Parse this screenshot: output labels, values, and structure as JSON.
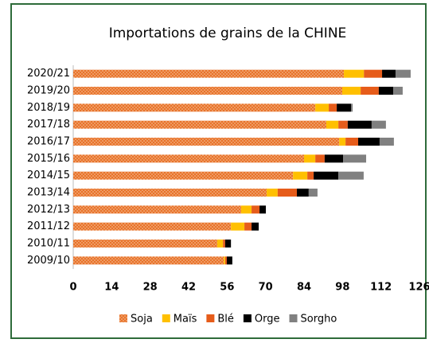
{
  "chart_data": {
    "type": "stacked_barh",
    "title": "Importations de grains de la CHINE",
    "categories": [
      "2020/21",
      "2019/20",
      "2018/19",
      "2017/18",
      "2016/17",
      "2015/16",
      "2014/15",
      "2013/14",
      "2012/13",
      "2011/12",
      "2010/11",
      "2009/10"
    ],
    "series": [
      {
        "name": "Soja",
        "color": "#e8732a",
        "values": [
          98.5,
          97.9,
          88.1,
          92.1,
          96.8,
          84.0,
          80.0,
          70.4,
          61.1,
          57.4,
          52.4,
          54.8
        ]
      },
      {
        "name": "Maïs",
        "color": "#ffc000",
        "values": [
          7.3,
          6.7,
          4.9,
          4.4,
          2.3,
          4.1,
          5.2,
          4.0,
          3.8,
          4.9,
          2.1,
          0.5
        ]
      },
      {
        "name": "Blé",
        "color": "#e65c1a",
        "values": [
          6.6,
          6.6,
          2.9,
          3.4,
          4.6,
          3.4,
          2.3,
          7.0,
          2.9,
          2.6,
          0.8,
          0.6
        ]
      },
      {
        "name": "Orge",
        "color": "#000000",
        "values": [
          4.9,
          5.3,
          5.2,
          8.7,
          7.8,
          6.7,
          9.0,
          4.3,
          2.3,
          2.6,
          2.1,
          2.0
        ]
      },
      {
        "name": "Sorgho",
        "color": "#808080",
        "values": [
          5.5,
          3.4,
          0.6,
          5.2,
          5.2,
          8.4,
          9.2,
          3.2,
          0,
          0,
          0,
          0
        ]
      }
    ],
    "xlim": [
      0,
      126
    ],
    "xticks": [
      0,
      14,
      28,
      42,
      56,
      70,
      84,
      98,
      112,
      126
    ],
    "legend": "bottom"
  }
}
